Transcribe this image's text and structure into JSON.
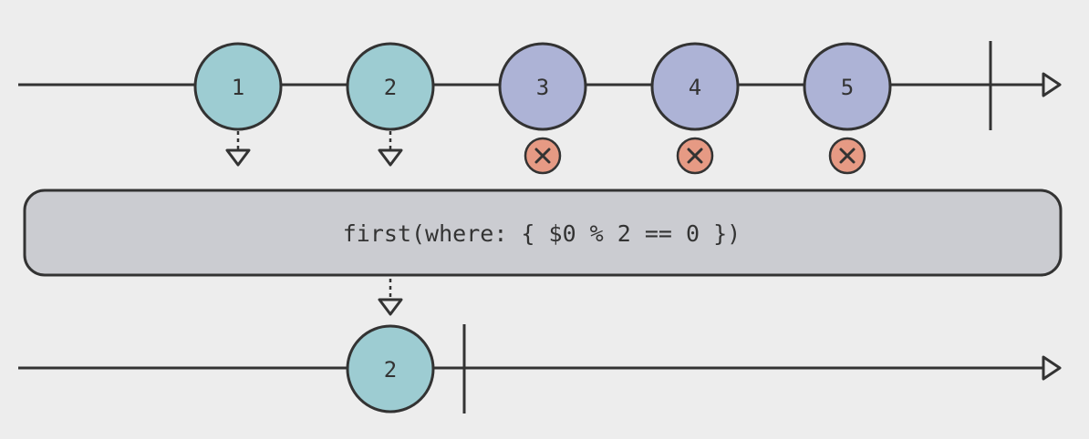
{
  "colors": {
    "background": "#ededed",
    "stroke": "#333333",
    "passed": "#9dccd2",
    "dropped": "#adb3d6",
    "cancel": "#e69a84",
    "operator_box": "#cbccd1"
  },
  "input_stream": {
    "marbles": [
      {
        "label": "1",
        "state": "passed",
        "marker": "down-arrow-icon"
      },
      {
        "label": "2",
        "state": "passed",
        "marker": "down-arrow-icon"
      },
      {
        "label": "3",
        "state": "dropped",
        "marker": "cancel-icon"
      },
      {
        "label": "4",
        "state": "dropped",
        "marker": "cancel-icon"
      },
      {
        "label": "5",
        "state": "dropped",
        "marker": "cancel-icon"
      }
    ],
    "completed": true
  },
  "operator": {
    "label": "first(where: { $0 % 2 == 0 })"
  },
  "output_stream": {
    "marbles": [
      {
        "label": "2",
        "state": "passed"
      }
    ],
    "completed": true
  }
}
